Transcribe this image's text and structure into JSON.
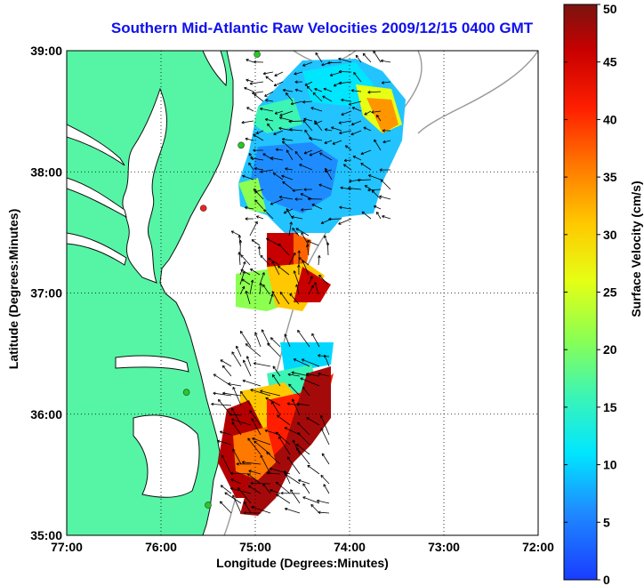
{
  "title": "Southern Mid-Atlantic Raw Velocities 2009/12/15 0400 GMT",
  "map": {
    "xlabel": "Longitude (Degrees:Minutes)",
    "ylabel": "Latitude (Degrees:Minutes)",
    "lon_range": [
      -77,
      -72
    ],
    "lat_range": [
      35,
      39
    ],
    "lon_ticks": [
      {
        "value": -77,
        "label": "77:00"
      },
      {
        "value": -76,
        "label": "76:00"
      },
      {
        "value": -75,
        "label": "75:00"
      },
      {
        "value": -74,
        "label": "74:00"
      },
      {
        "value": -73,
        "label": "73:00"
      },
      {
        "value": -72,
        "label": "72:00"
      }
    ],
    "lat_ticks": [
      {
        "value": 35,
        "label": "35:00"
      },
      {
        "value": 36,
        "label": "36:00"
      },
      {
        "value": 37,
        "label": "37:00"
      },
      {
        "value": 38,
        "label": "38:00"
      },
      {
        "value": 39,
        "label": "39:00"
      }
    ],
    "grid": "dotted",
    "land_color": "#55f5a5",
    "water_color": "#ffffff",
    "stations": [
      {
        "lon": -74.98,
        "lat": 38.97,
        "color": "#22cc22"
      },
      {
        "lon": -75.15,
        "lat": 38.22,
        "color": "#22cc22"
      },
      {
        "lon": -75.55,
        "lat": 37.7,
        "color": "#ee2222"
      },
      {
        "lon": -75.73,
        "lat": 36.18,
        "color": "#22cc22"
      },
      {
        "lon": -75.5,
        "lat": 35.25,
        "color": "#22cc22"
      }
    ]
  },
  "colorbar": {
    "label": "Surface Velocity (cm/s)",
    "min": 0,
    "max": 50,
    "ticks": [
      0,
      5,
      10,
      15,
      20,
      25,
      30,
      35,
      40,
      45,
      50
    ]
  }
}
